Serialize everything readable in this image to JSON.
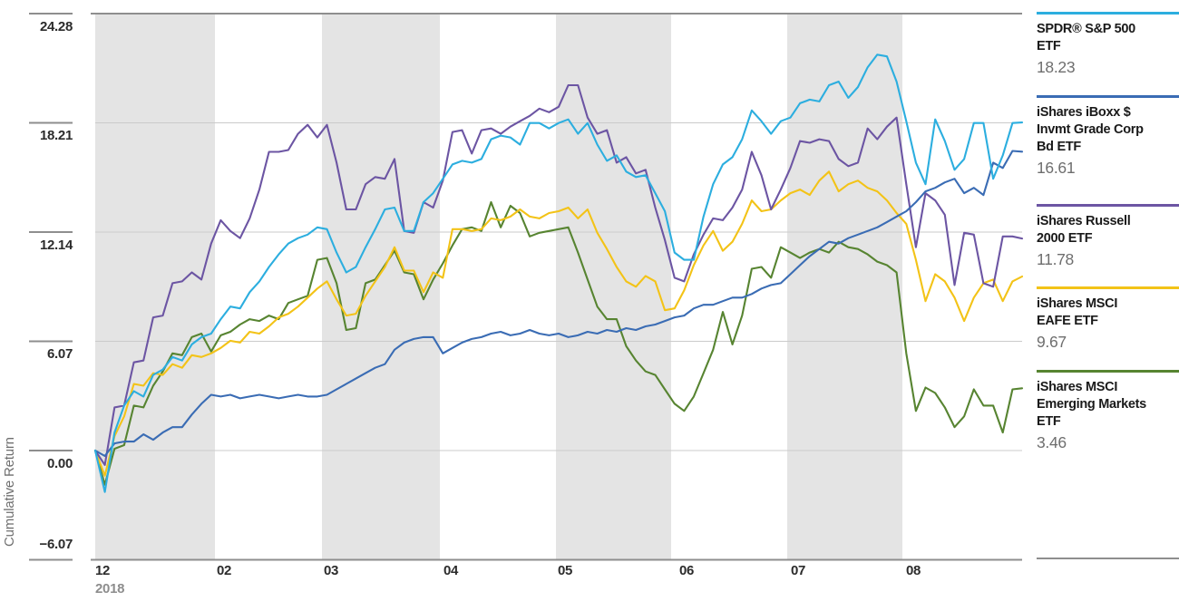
{
  "axes": {
    "y_label": "Cumulative Return",
    "y_ticks": [
      "24.28",
      "18.21",
      "12.14",
      "6.07",
      "0.00",
      "−6.07"
    ],
    "x_ticks": [
      "12",
      "02",
      "03",
      "04",
      "05",
      "06",
      "07",
      "08"
    ],
    "x_year": "2018"
  },
  "legend": {
    "items": [
      {
        "name": "SPDR® S&P 500\nETF",
        "value": "18.23",
        "color": "#2CAEDF"
      },
      {
        "name": "iShares iBoxx $\nInvmt Grade Corp\nBd ETF",
        "value": "16.61",
        "color": "#3A6CB4"
      },
      {
        "name": "iShares Russell\n2000 ETF",
        "value": "11.78",
        "color": "#6C55A3"
      },
      {
        "name": "iShares MSCI\nEAFE ETF",
        "value": "9.67",
        "color": "#F3C317"
      },
      {
        "name": "iShares MSCI\nEmerging Markets\nETF",
        "value": "3.46",
        "color": "#578431"
      }
    ]
  },
  "chart_data": {
    "type": "line",
    "title": "",
    "xlabel": "",
    "ylabel": "Cumulative Return",
    "x_range": [
      "2018-12-31",
      "2019-08-30"
    ],
    "x_month_labels": [
      "12",
      "02",
      "03",
      "04",
      "05",
      "06",
      "07",
      "08"
    ],
    "ylim": [
      -6.07,
      24.28
    ],
    "y_gridlines": [
      24.28,
      18.21,
      12.14,
      6.07,
      0.0,
      -6.07
    ],
    "grid": "horizontal",
    "band_shading": "alternating-months",
    "legend_position": "right",
    "series": [
      {
        "name": "SPDR® S&P 500 ETF",
        "final_value": 18.23,
        "color": "#2CAEDF",
        "values": [
          0,
          -2.3,
          1.0,
          2.5,
          3.3,
          3.0,
          4.2,
          4.5,
          5.2,
          5.0,
          5.9,
          6.3,
          6.5,
          7.3,
          8.0,
          7.9,
          8.8,
          9.4,
          10.2,
          10.9,
          11.5,
          11.8,
          12.0,
          12.4,
          12.3,
          11.0,
          9.9,
          10.2,
          11.3,
          12.3,
          13.4,
          13.5,
          12.2,
          12.2,
          13.8,
          14.3,
          15.1,
          15.9,
          16.1,
          16.0,
          16.2,
          17.3,
          17.5,
          17.4,
          17.0,
          18.2,
          18.2,
          17.9,
          18.2,
          18.4,
          17.6,
          18.2,
          17.0,
          16.1,
          16.4,
          15.5,
          15.2,
          15.3,
          14.3,
          13.3,
          11.0,
          10.6,
          10.6,
          13.0,
          14.8,
          15.9,
          16.3,
          17.3,
          18.9,
          18.3,
          17.6,
          18.3,
          18.5,
          19.3,
          19.5,
          19.4,
          20.3,
          20.5,
          19.6,
          20.2,
          21.3,
          22.0,
          21.9,
          20.5,
          18.3,
          16.0,
          14.8,
          18.4,
          17.2,
          15.6,
          16.2,
          18.2,
          18.2,
          15.1,
          16.4,
          18.2,
          18.23
        ]
      },
      {
        "name": "iShares iBoxx $ Invmt Grade Corp Bd ETF",
        "final_value": 16.61,
        "color": "#3A6CB4",
        "values": [
          0,
          -0.3,
          0.4,
          0.5,
          0.5,
          0.9,
          0.6,
          1.0,
          1.3,
          1.3,
          2.0,
          2.6,
          3.1,
          3.0,
          3.1,
          2.9,
          3.0,
          3.1,
          3.0,
          2.9,
          3.0,
          3.1,
          3.0,
          3.0,
          3.1,
          3.4,
          3.7,
          4.0,
          4.3,
          4.6,
          4.8,
          5.6,
          6.0,
          6.2,
          6.3,
          6.3,
          5.4,
          5.7,
          6.0,
          6.2,
          6.3,
          6.5,
          6.6,
          6.4,
          6.5,
          6.7,
          6.5,
          6.4,
          6.5,
          6.3,
          6.4,
          6.6,
          6.5,
          6.7,
          6.6,
          6.8,
          6.7,
          6.9,
          7.0,
          7.2,
          7.4,
          7.5,
          7.9,
          8.1,
          8.1,
          8.3,
          8.5,
          8.5,
          8.7,
          9.0,
          9.2,
          9.3,
          9.8,
          10.3,
          10.8,
          11.2,
          11.6,
          11.5,
          11.8,
          12.0,
          12.2,
          12.4,
          12.7,
          13.0,
          13.3,
          13.8,
          14.4,
          14.6,
          14.9,
          15.1,
          14.3,
          14.6,
          14.2,
          16.0,
          15.7,
          16.65,
          16.61
        ]
      },
      {
        "name": "iShares Russell 2000 ETF",
        "final_value": 11.78,
        "color": "#6C55A3",
        "values": [
          0,
          -0.8,
          2.4,
          2.5,
          4.9,
          5.0,
          7.4,
          7.5,
          9.3,
          9.4,
          9.9,
          9.5,
          11.5,
          12.8,
          12.2,
          11.8,
          12.9,
          14.5,
          16.6,
          16.6,
          16.7,
          17.6,
          18.1,
          17.4,
          18.1,
          16.0,
          13.4,
          13.4,
          14.8,
          15.2,
          15.1,
          16.2,
          12.2,
          12.1,
          13.8,
          13.5,
          15.0,
          17.7,
          17.8,
          16.5,
          17.8,
          17.9,
          17.6,
          18.0,
          18.3,
          18.6,
          19.0,
          18.8,
          19.1,
          20.3,
          20.3,
          18.5,
          17.6,
          17.8,
          16.0,
          16.3,
          15.4,
          15.6,
          13.5,
          11.7,
          9.6,
          9.4,
          10.9,
          12.0,
          12.9,
          12.8,
          13.5,
          14.5,
          16.6,
          15.3,
          13.4,
          14.5,
          15.7,
          17.2,
          17.1,
          17.3,
          17.2,
          16.2,
          15.8,
          16.0,
          17.9,
          17.3,
          18.0,
          18.5,
          14.8,
          11.3,
          14.3,
          13.9,
          13.1,
          9.2,
          12.1,
          12.0,
          9.3,
          9.1,
          11.9,
          11.9,
          11.78
        ]
      },
      {
        "name": "iShares MSCI EAFE ETF",
        "final_value": 9.67,
        "color": "#F3C317",
        "values": [
          0,
          -1.4,
          0.8,
          1.9,
          3.7,
          3.6,
          4.3,
          4.2,
          4.8,
          4.6,
          5.3,
          5.2,
          5.4,
          5.7,
          6.1,
          6.0,
          6.6,
          6.5,
          6.9,
          7.4,
          7.6,
          8.0,
          8.5,
          9.0,
          9.4,
          8.4,
          7.5,
          7.6,
          8.6,
          9.4,
          10.2,
          11.3,
          10.0,
          10.0,
          8.8,
          9.9,
          9.6,
          12.3,
          12.3,
          12.2,
          12.3,
          12.9,
          12.8,
          13.0,
          13.4,
          13.0,
          12.9,
          13.2,
          13.3,
          13.5,
          12.9,
          13.4,
          12.1,
          11.2,
          10.2,
          9.4,
          9.1,
          9.7,
          9.4,
          7.8,
          7.9,
          8.9,
          10.3,
          11.4,
          12.2,
          11.1,
          11.6,
          12.6,
          13.9,
          13.3,
          13.4,
          13.9,
          14.3,
          14.5,
          14.2,
          15.0,
          15.5,
          14.4,
          14.8,
          15.0,
          14.6,
          14.4,
          13.9,
          13.2,
          12.6,
          10.6,
          8.3,
          9.8,
          9.4,
          8.5,
          7.2,
          8.5,
          9.3,
          9.5,
          8.3,
          9.4,
          9.67
        ]
      },
      {
        "name": "iShares MSCI Emerging Markets ETF",
        "final_value": 3.46,
        "color": "#578431",
        "values": [
          0,
          -1.9,
          0.1,
          0.3,
          2.5,
          2.4,
          3.6,
          4.4,
          5.4,
          5.3,
          6.3,
          6.5,
          5.5,
          6.4,
          6.6,
          7.0,
          7.3,
          7.2,
          7.5,
          7.3,
          8.2,
          8.4,
          8.6,
          10.6,
          10.7,
          9.3,
          6.7,
          6.8,
          9.3,
          9.5,
          10.3,
          11.1,
          9.9,
          9.8,
          8.4,
          9.5,
          10.4,
          11.4,
          12.3,
          12.4,
          12.2,
          13.8,
          12.4,
          13.6,
          13.2,
          11.9,
          12.1,
          12.2,
          12.3,
          12.4,
          11.0,
          9.5,
          8.0,
          7.3,
          7.3,
          5.8,
          5.0,
          4.4,
          4.2,
          3.4,
          2.6,
          2.2,
          3.0,
          4.3,
          5.6,
          7.7,
          5.9,
          7.5,
          10.1,
          10.2,
          9.6,
          11.3,
          11.0,
          10.7,
          11.0,
          11.2,
          11.0,
          11.6,
          11.3,
          11.2,
          10.9,
          10.5,
          10.3,
          9.9,
          5.4,
          2.2,
          3.5,
          3.2,
          2.4,
          1.3,
          1.9,
          3.4,
          2.5,
          2.5,
          1.0,
          3.4,
          3.46
        ]
      }
    ]
  }
}
